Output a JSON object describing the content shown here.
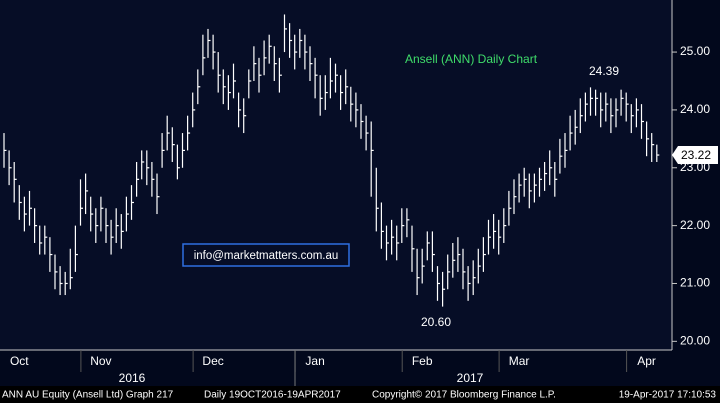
{
  "chart_data": {
    "type": "hlc",
    "title": "Ansell (ANN) Daily Chart",
    "watermark": "info@marketmatters.com.au",
    "annotations": [
      "24.39",
      "20.60"
    ],
    "last_price": 23.22,
    "categories": [
      null,
      null,
      null,
      "Oct",
      null,
      null,
      null,
      null,
      null,
      null,
      null,
      null,
      null,
      null,
      null,
      null,
      null,
      null,
      null,
      "Nov",
      null,
      null,
      null,
      null,
      null,
      null,
      null,
      null,
      null,
      null,
      null,
      null,
      null,
      null,
      null,
      null,
      null,
      null,
      null,
      null,
      null,
      "Dec",
      null,
      null,
      null,
      null,
      null,
      null,
      null,
      null,
      null,
      null,
      null,
      null,
      null,
      null,
      null,
      null,
      null,
      null,
      null,
      "Jan",
      null,
      null,
      null,
      null,
      null,
      null,
      null,
      null,
      null,
      null,
      null,
      null,
      null,
      null,
      null,
      null,
      null,
      null,
      null,
      null,
      "Feb",
      null,
      null,
      null,
      null,
      null,
      null,
      null,
      null,
      null,
      null,
      null,
      null,
      null,
      null,
      null,
      null,
      null,
      null,
      "Mar",
      null,
      null,
      null,
      null,
      null,
      null,
      null,
      null,
      null,
      null,
      null,
      null,
      null,
      null,
      null,
      null,
      null,
      null,
      null,
      null,
      null,
      null,
      null,
      null,
      "Apr",
      null,
      null
    ],
    "years": [
      "2016",
      "2017"
    ],
    "series": [
      {
        "name": "ANN AU Equity",
        "color": "#ffffff",
        "high": [
          23.6,
          23.3,
          23.1,
          22.7,
          22.5,
          22.6,
          22.3,
          22.0,
          22.0,
          21.8,
          21.5,
          21.3,
          21.2,
          21.6,
          22.0,
          22.8,
          22.9,
          22.5,
          22.3,
          22.5,
          22.3,
          22.1,
          22.3,
          22.2,
          22.5,
          22.7,
          23.1,
          23.3,
          23.3,
          23.1,
          22.9,
          23.6,
          23.9,
          23.7,
          23.4,
          23.6,
          23.9,
          24.3,
          24.7,
          25.3,
          25.4,
          25.3,
          25.0,
          24.7,
          24.6,
          24.8,
          24.3,
          24.2,
          24.7,
          25.1,
          24.9,
          25.2,
          25.3,
          25.1,
          24.9,
          25.65,
          25.5,
          25.3,
          25.4,
          25.3,
          25.1,
          24.9,
          24.6,
          24.6,
          24.9,
          24.8,
          24.6,
          24.7,
          24.4,
          24.3,
          24.1,
          23.9,
          23.8,
          23.0,
          22.4,
          22.0,
          22.1,
          22.0,
          22.3,
          22.3,
          22.0,
          21.6,
          21.6,
          21.9,
          21.9,
          21.3,
          21.2,
          21.5,
          21.7,
          21.8,
          21.6,
          21.3,
          21.4,
          21.6,
          21.8,
          22.1,
          22.2,
          22.1,
          22.3,
          22.6,
          22.8,
          22.9,
          23.0,
          22.9,
          22.9,
          23.0,
          23.1,
          23.3,
          23.1,
          23.5,
          23.6,
          23.9,
          24.0,
          24.2,
          24.3,
          24.39,
          24.35,
          24.3,
          24.3,
          24.2,
          24.2,
          24.35,
          24.3,
          24.1,
          24.2,
          24.1,
          23.8,
          23.6,
          23.4
        ],
        "low": [
          23.0,
          22.7,
          22.4,
          22.1,
          21.9,
          22.0,
          21.7,
          21.5,
          21.5,
          21.2,
          20.9,
          20.8,
          20.8,
          20.9,
          21.2,
          22.0,
          22.2,
          21.9,
          21.7,
          21.9,
          21.7,
          21.5,
          21.7,
          21.6,
          21.9,
          22.1,
          22.5,
          22.8,
          22.7,
          22.5,
          22.2,
          23.0,
          23.3,
          23.1,
          22.8,
          23.0,
          23.3,
          23.7,
          24.1,
          24.6,
          24.9,
          24.7,
          24.3,
          24.1,
          24.0,
          24.2,
          23.7,
          23.6,
          24.2,
          24.5,
          24.3,
          24.6,
          24.8,
          24.5,
          24.3,
          25.0,
          24.9,
          24.7,
          24.9,
          24.7,
          24.5,
          24.2,
          23.9,
          24.0,
          24.2,
          24.3,
          24.0,
          24.1,
          23.8,
          23.7,
          23.5,
          23.3,
          22.5,
          21.9,
          21.6,
          21.4,
          21.5,
          21.4,
          21.7,
          21.8,
          21.2,
          20.8,
          21.0,
          21.4,
          21.2,
          20.7,
          20.6,
          20.9,
          21.1,
          21.2,
          20.9,
          20.7,
          20.8,
          21.0,
          21.2,
          21.5,
          21.6,
          21.5,
          21.7,
          22.0,
          22.2,
          22.4,
          22.5,
          22.3,
          22.4,
          22.5,
          22.6,
          22.7,
          22.5,
          22.9,
          23.0,
          23.3,
          23.4,
          23.6,
          23.8,
          23.9,
          23.9,
          23.7,
          23.8,
          23.6,
          23.7,
          23.9,
          23.8,
          23.6,
          23.7,
          23.5,
          23.2,
          23.1,
          23.1
        ],
        "close": [
          23.3,
          23.0,
          22.8,
          22.4,
          22.2,
          22.3,
          22.0,
          21.7,
          21.8,
          21.5,
          21.2,
          21.0,
          21.0,
          21.1,
          21.5,
          22.3,
          22.6,
          22.2,
          22.0,
          22.3,
          22.0,
          21.8,
          22.0,
          21.9,
          22.2,
          22.4,
          22.8,
          23.1,
          23.0,
          22.8,
          22.5,
          23.3,
          23.6,
          23.4,
          23.0,
          23.3,
          23.6,
          24.0,
          24.4,
          24.9,
          25.2,
          25.0,
          24.6,
          24.4,
          24.3,
          24.5,
          24.0,
          23.9,
          24.5,
          24.8,
          24.6,
          24.9,
          25.1,
          24.8,
          24.6,
          25.4,
          25.2,
          25.0,
          25.2,
          25.0,
          24.8,
          24.6,
          24.2,
          24.3,
          24.5,
          24.6,
          24.3,
          24.4,
          24.1,
          24.0,
          23.8,
          23.6,
          23.3,
          22.3,
          21.9,
          21.7,
          21.8,
          21.7,
          22.0,
          22.1,
          21.6,
          21.1,
          21.3,
          21.7,
          21.5,
          21.0,
          20.9,
          21.2,
          21.4,
          21.5,
          21.2,
          21.0,
          21.1,
          21.3,
          21.5,
          21.8,
          21.9,
          21.8,
          22.0,
          22.3,
          22.5,
          22.7,
          22.8,
          22.6,
          22.7,
          22.8,
          22.9,
          23.0,
          22.8,
          23.2,
          23.3,
          23.6,
          23.7,
          23.9,
          24.1,
          24.2,
          24.2,
          24.0,
          24.1,
          23.9,
          24.0,
          24.2,
          24.1,
          23.9,
          24.0,
          23.8,
          23.5,
          23.4,
          23.22
        ]
      }
    ],
    "ylim": [
      19.85,
      25.9
    ],
    "yticks": [
      {
        "value": 20,
        "label": "20.00"
      },
      {
        "value": 21,
        "label": "21.00"
      },
      {
        "value": 22,
        "label": "22.00"
      },
      {
        "value": 23,
        "label": "23.00"
      },
      {
        "value": 24,
        "label": "24.00"
      },
      {
        "value": 25,
        "label": "25.00"
      }
    ],
    "grid": false,
    "footer": {
      "security": "ANN AU Equity (Ansell Ltd) Graph 217",
      "range": "Daily 19OCT2016-19APR2017",
      "copyright": "Copyright© 2017 Bloomberg Finance L.P.",
      "timestamp": "19-Apr-2017 17:10:53"
    }
  }
}
